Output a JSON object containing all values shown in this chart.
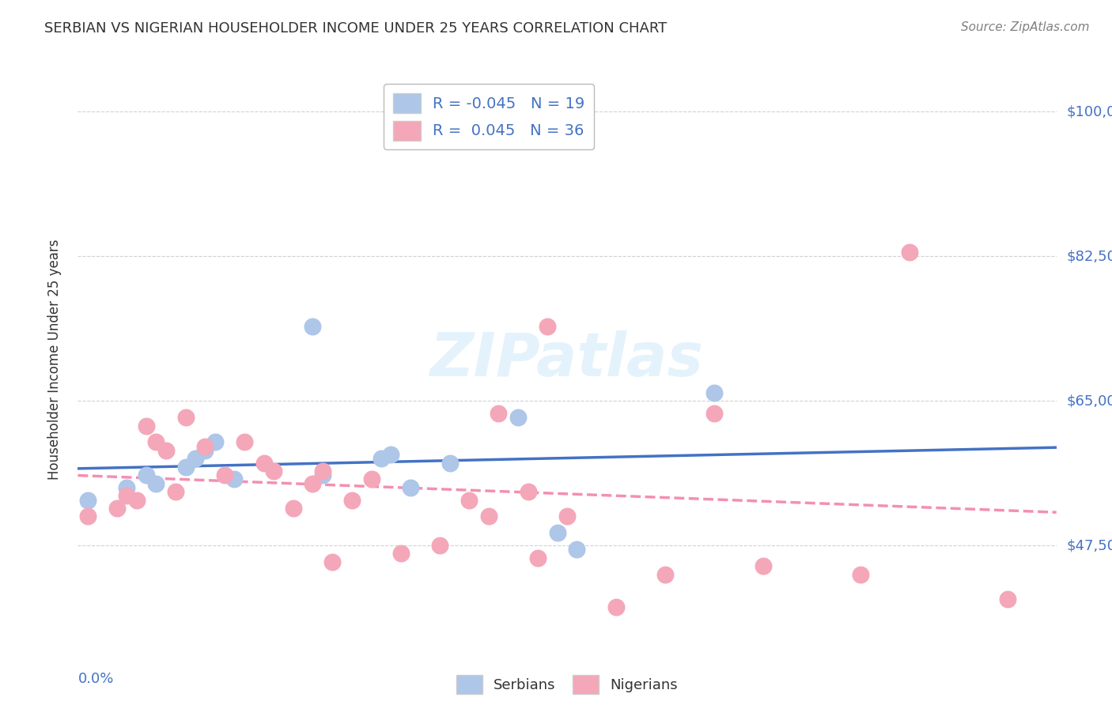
{
  "title": "SERBIAN VS NIGERIAN HOUSEHOLDER INCOME UNDER 25 YEARS CORRELATION CHART",
  "source": "Source: ZipAtlas.com",
  "ylabel": "Householder Income Under 25 years",
  "yticks": [
    47500,
    65000,
    82500,
    100000
  ],
  "ytick_labels": [
    "$47,500",
    "$65,000",
    "$82,500",
    "$100,000"
  ],
  "xlim": [
    0.0,
    0.1
  ],
  "ylim": [
    35000,
    105000
  ],
  "legend_r_serbian": "-0.045",
  "legend_n_serbian": "19",
  "legend_r_nigerian": "0.045",
  "legend_n_nigerian": "36",
  "serbian_color": "#aec6e8",
  "nigerian_color": "#f4a7b9",
  "serbian_line_color": "#4472c4",
  "nigerian_line_color": "#f48fb1",
  "watermark": "ZIPatlas",
  "serbian_x": [
    0.001,
    0.005,
    0.007,
    0.008,
    0.011,
    0.012,
    0.013,
    0.014,
    0.016,
    0.024,
    0.025,
    0.031,
    0.032,
    0.034,
    0.038,
    0.045,
    0.049,
    0.051,
    0.065
  ],
  "serbian_y": [
    53000,
    54500,
    56000,
    55000,
    57000,
    58000,
    59000,
    60000,
    55500,
    74000,
    56000,
    58000,
    58500,
    54500,
    57500,
    63000,
    49000,
    47000,
    66000
  ],
  "nigerian_x": [
    0.001,
    0.004,
    0.005,
    0.006,
    0.007,
    0.008,
    0.009,
    0.01,
    0.011,
    0.013,
    0.015,
    0.017,
    0.019,
    0.02,
    0.022,
    0.024,
    0.025,
    0.026,
    0.028,
    0.03,
    0.033,
    0.037,
    0.04,
    0.042,
    0.043,
    0.046,
    0.047,
    0.048,
    0.05,
    0.055,
    0.06,
    0.065,
    0.07,
    0.08,
    0.085,
    0.095
  ],
  "nigerian_y": [
    51000,
    52000,
    53500,
    53000,
    62000,
    60000,
    59000,
    54000,
    63000,
    59500,
    56000,
    60000,
    57500,
    56500,
    52000,
    55000,
    56500,
    45500,
    53000,
    55500,
    46500,
    47500,
    53000,
    51000,
    63500,
    54000,
    46000,
    74000,
    51000,
    40000,
    44000,
    63500,
    45000,
    44000,
    83000,
    41000
  ],
  "background_color": "#ffffff",
  "grid_color": "#cccccc",
  "title_color": "#333333",
  "tick_label_color": "#4472c4"
}
